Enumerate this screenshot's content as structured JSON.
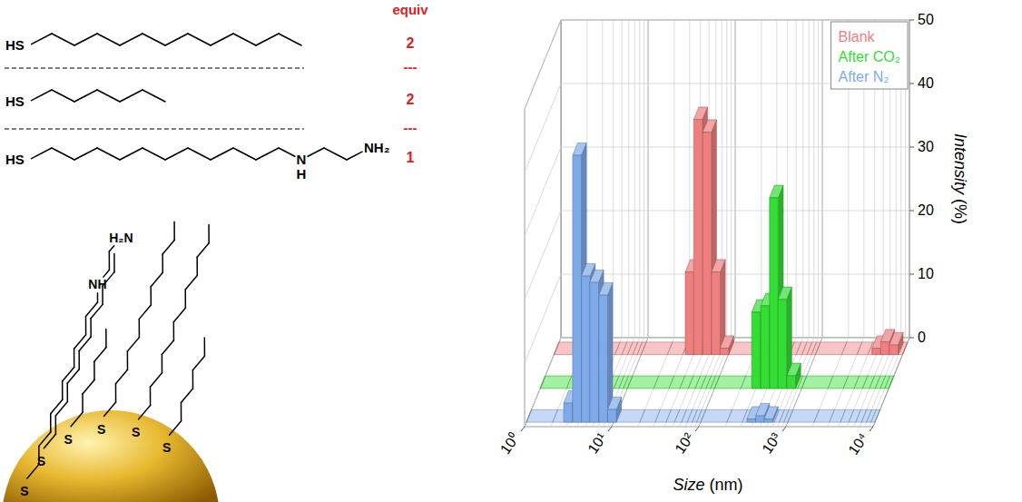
{
  "scheme": {
    "equiv_header": "equiv",
    "separator": "---",
    "thiol_label": "HS",
    "thiols": [
      {
        "carbons": 12,
        "equiv": 2
      },
      {
        "carbons": 6,
        "equiv": 2
      },
      {
        "carbons": 11,
        "equiv": 1,
        "amine": {
          "n": "N",
          "h": "H",
          "linker_carbons": 2,
          "terminal": "NH₂"
        }
      }
    ],
    "particle": {
      "sulfur_label": "S",
      "sulfur_count": 6,
      "amine_labels": [
        "NH",
        "H₂N"
      ]
    }
  },
  "chart_data": {
    "type": "bar",
    "x_label": "Size (nm)",
    "y_label": "Intensity (%)",
    "log": "x",
    "xlim": [
      1,
      10000
    ],
    "xticks": [
      {
        "value": 1,
        "label": "10⁰"
      },
      {
        "value": 10,
        "label": "10¹"
      },
      {
        "value": 100,
        "label": "10²"
      },
      {
        "value": 1000,
        "label": "10³"
      },
      {
        "value": 10000,
        "label": "10⁴"
      }
    ],
    "ylim": [
      0,
      50
    ],
    "yticks": [
      0,
      10,
      20,
      30,
      40,
      50
    ],
    "grid": true,
    "legend": "top-right",
    "series": [
      {
        "name": "Blank",
        "color": "#ee7f7f",
        "x": [
          36,
          45,
          57,
          72,
          90,
          5000,
          6300,
          7900
        ],
        "values": [
          13,
          37,
          35,
          13,
          1,
          1,
          2,
          1.5
        ]
      },
      {
        "name": "After CO₂",
        "color": "#33dd33",
        "x": [
          300,
          380,
          480,
          600,
          760
        ],
        "values": [
          12,
          13,
          30,
          14,
          2
        ]
      },
      {
        "name": "After N₂",
        "color": "#7eaaea",
        "x": [
          3.0,
          3.8,
          4.8,
          6.0,
          7.6,
          9.6,
          380,
          480,
          600
        ],
        "values": [
          3,
          42,
          23,
          22,
          20,
          2,
          0.5,
          1,
          0.5
        ]
      }
    ]
  }
}
